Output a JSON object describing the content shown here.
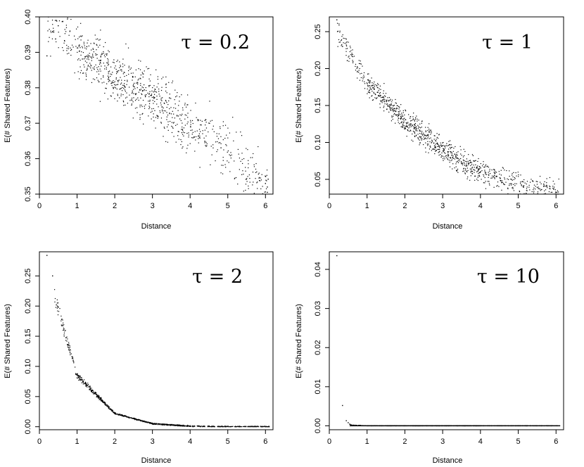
{
  "chart_data": [
    {
      "type": "scatter",
      "annotation": "τ = 0.2",
      "xlabel": "Distance",
      "ylabel": "E(# Shared Features)",
      "xlim": [
        0,
        6.2
      ],
      "ylim": [
        0.35,
        0.4
      ],
      "xticks": [
        0,
        1,
        2,
        3,
        4,
        5,
        6
      ],
      "yticks": [
        "0.35",
        "0.36",
        "0.37",
        "0.38",
        "0.39",
        "0.40"
      ],
      "series": [
        {
          "model": "linear",
          "n": 900,
          "x_range": [
            0.2,
            6.1
          ],
          "trend": [
            [
              0.5,
              0.3965
            ],
            [
              1.0,
              0.391
            ],
            [
              2.0,
              0.384
            ],
            [
              3.0,
              0.377
            ],
            [
              4.0,
              0.369
            ],
            [
              5.0,
              0.362
            ],
            [
              6.0,
              0.352
            ]
          ],
          "spread": 0.004,
          "highlights": [
            [
              0.2,
              0.389
            ],
            [
              0.45,
              0.399
            ],
            [
              0.5,
              0.3975
            ],
            [
              6.05,
              0.3505
            ],
            [
              6.05,
              0.352
            ],
            [
              6.0,
              0.353
            ]
          ]
        }
      ]
    },
    {
      "type": "scatter",
      "annotation": "τ = 1",
      "xlabel": "Distance",
      "ylabel": "E(# Shared Features)",
      "xlim": [
        0,
        6.2
      ],
      "ylim": [
        0.03,
        0.27
      ],
      "xticks": [
        0,
        1,
        2,
        3,
        4,
        5,
        6
      ],
      "yticks": [
        "0.05",
        "0.10",
        "0.15",
        "0.20",
        "0.25"
      ],
      "series": [
        {
          "model": "exp",
          "n": 1000,
          "x_range": [
            0.2,
            6.1
          ],
          "trend": [
            [
              0.5,
              0.225
            ],
            [
              1.0,
              0.18
            ],
            [
              2.0,
              0.13
            ],
            [
              3.0,
              0.09
            ],
            [
              4.0,
              0.06
            ],
            [
              5.0,
              0.043
            ],
            [
              6.0,
              0.031
            ]
          ],
          "spread": 0.008,
          "highlights": [
            [
              0.2,
              0.266
            ],
            [
              0.35,
              0.23
            ],
            [
              0.45,
              0.24
            ],
            [
              6.05,
              0.03
            ],
            [
              6.0,
              0.032
            ]
          ]
        }
      ]
    },
    {
      "type": "scatter",
      "annotation": "τ = 2",
      "xlabel": "Distance",
      "ylabel": "E(# Shared Features)",
      "xlim": [
        0,
        6.2
      ],
      "ylim": [
        -0.005,
        0.29
      ],
      "xticks": [
        0,
        1,
        2,
        3,
        4,
        5,
        6
      ],
      "yticks": [
        "0.00",
        "0.05",
        "0.10",
        "0.15",
        "0.20",
        "0.25"
      ],
      "series": [
        {
          "model": "exp2",
          "n": 1000,
          "x_range": [
            0.4,
            6.1
          ],
          "trend": [
            [
              0.5,
              0.195
            ],
            [
              1.0,
              0.085
            ],
            [
              2.0,
              0.022
            ],
            [
              3.0,
              0.005
            ],
            [
              4.0,
              0.001
            ],
            [
              5.0,
              0.0
            ],
            [
              6.0,
              0.0
            ]
          ],
          "spread": 0.006,
          "highlights": [
            [
              0.2,
              0.284
            ],
            [
              0.35,
              0.25
            ],
            [
              0.45,
              0.202
            ],
            [
              0.5,
              0.198
            ],
            [
              6.0,
              0.0
            ],
            [
              6.1,
              0.0
            ]
          ]
        }
      ]
    },
    {
      "type": "scatter",
      "annotation": "τ = 10",
      "xlabel": "Distance",
      "ylabel": "E(# Shared Features)",
      "xlim": [
        0,
        6.2
      ],
      "ylim": [
        -0.001,
        0.0445
      ],
      "xticks": [
        0,
        1,
        2,
        3,
        4,
        5,
        6
      ],
      "yticks": [
        "0.00",
        "0.01",
        "0.02",
        "0.03",
        "0.04"
      ],
      "series": [
        {
          "model": "flat",
          "n": 900,
          "x_range": [
            0.5,
            6.1
          ],
          "trend": [
            [
              0.5,
              0.0005
            ],
            [
              0.6,
              0.0002
            ],
            [
              1.0,
              0.0
            ],
            [
              6.0,
              0.0
            ]
          ],
          "spread": 5e-05,
          "highlights": [
            [
              0.2,
              0.0435
            ],
            [
              0.35,
              0.0052
            ],
            [
              0.45,
              0.0013
            ],
            [
              0.5,
              0.0008
            ]
          ]
        }
      ]
    }
  ]
}
